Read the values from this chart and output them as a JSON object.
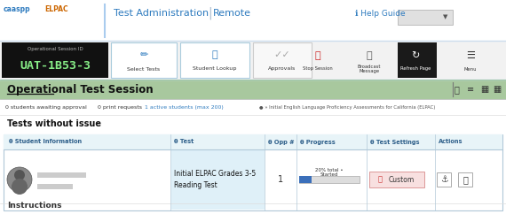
{
  "bg_color": "#ffffff",
  "session_id_text": "UAT-1B53-3",
  "session_id_label": "Operational Session ID",
  "green_bar_text": "Operational Test Session",
  "green_bar_bg": "#a8c89e",
  "status_text": "0 students awaiting approval   0 print requests   1 active students (max 200)",
  "status_right": "● » Initial English Language Proficiency Assessments for California (ELPAC)",
  "section_title": "Tests without issue",
  "col_headers": [
    "Student Information",
    "Test",
    "Opp #",
    "Progress",
    "Test Settings",
    "Actions"
  ],
  "col_header_bg": "#e8f4f8",
  "test_cell_bg": "#dff0f8",
  "test_name": "Initial ELPAC Grades 3-5\nReading Test",
  "opp_num": "1",
  "progress_pct": 20,
  "progress_label": "20% total •\nStarted",
  "progress_bar_color": "#3b6fba",
  "progress_bg_color": "#dddddd",
  "custom_btn_bg": "#f8e0e0",
  "custom_btn_text": "Custom",
  "title_admin": "Test Administration",
  "title_remote": "Remote",
  "help_text": "ℹ Help Guide",
  "footer_text": "Instructions"
}
